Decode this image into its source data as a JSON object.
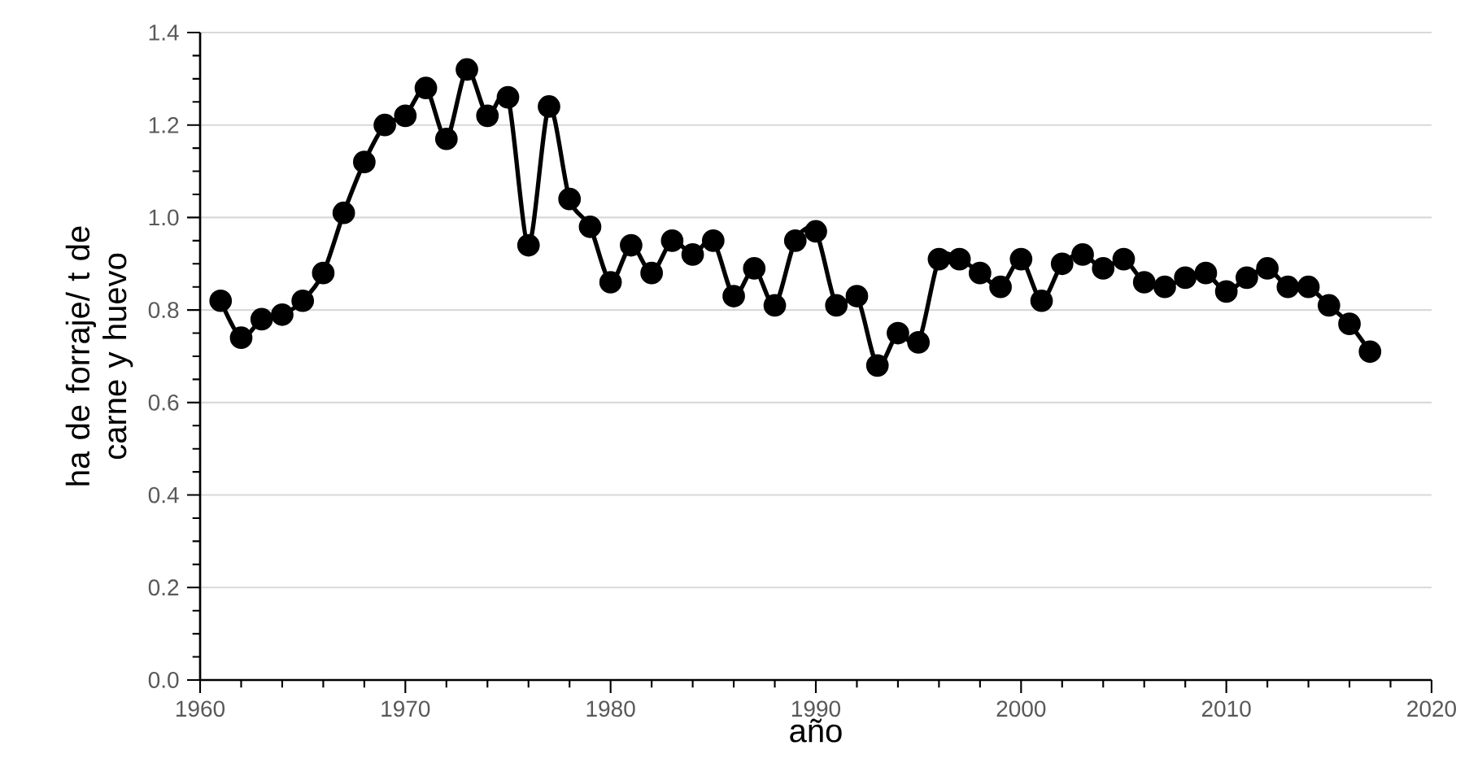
{
  "chart_data": {
    "type": "line",
    "xlabel": "año",
    "ylabel": "ha de forraje/ t de carne y huevo",
    "x": [
      1961,
      1962,
      1963,
      1964,
      1965,
      1966,
      1967,
      1968,
      1969,
      1970,
      1971,
      1972,
      1973,
      1974,
      1975,
      1976,
      1977,
      1978,
      1979,
      1980,
      1981,
      1982,
      1983,
      1984,
      1985,
      1986,
      1987,
      1988,
      1989,
      1990,
      1991,
      1992,
      1993,
      1994,
      1995,
      1996,
      1997,
      1998,
      1999,
      2000,
      2001,
      2002,
      2003,
      2004,
      2005,
      2006,
      2007,
      2008,
      2009,
      2010,
      2011,
      2012,
      2013,
      2014,
      2015,
      2016,
      2017
    ],
    "series": [
      {
        "color": "#000000",
        "values": [
          0.82,
          0.74,
          0.78,
          0.79,
          0.82,
          0.88,
          1.01,
          1.12,
          1.2,
          1.22,
          1.28,
          1.17,
          1.32,
          1.22,
          1.26,
          0.94,
          1.24,
          1.04,
          0.98,
          0.86,
          0.94,
          0.88,
          0.95,
          0.92,
          0.95,
          0.83,
          0.89,
          0.81,
          0.95,
          0.97,
          0.81,
          0.83,
          0.68,
          0.75,
          0.73,
          0.91,
          0.91,
          0.88,
          0.85,
          0.91,
          0.82,
          0.9,
          0.92,
          0.89,
          0.91,
          0.86,
          0.85,
          0.87,
          0.88,
          0.84,
          0.87,
          0.89,
          0.85,
          0.85,
          0.81,
          0.77,
          0.71
        ]
      }
    ],
    "xlim": [
      1960,
      2020
    ],
    "xticks": [
      1960,
      1970,
      1980,
      1990,
      2000,
      2010,
      2020
    ],
    "ylim": [
      0,
      1.4
    ],
    "yticks": [
      {
        "value": 0,
        "label": "0.0"
      },
      0.2,
      0.4,
      0.6,
      0.8,
      {
        "value": 1,
        "label": "1.0"
      },
      1.2,
      1.4
    ],
    "grid": "y",
    "marker": "circle",
    "line_style": "solid"
  }
}
